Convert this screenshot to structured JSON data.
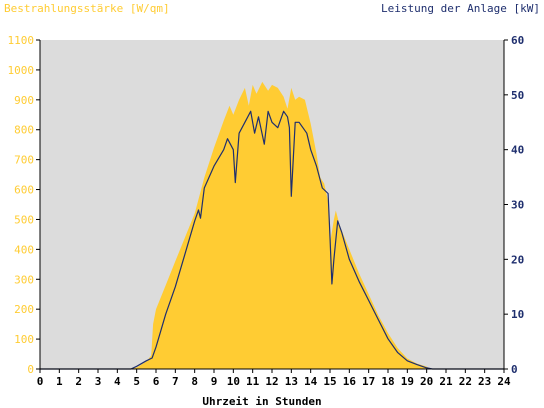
{
  "chart_data": {
    "type": "area",
    "left_axis_title": "Bestrahlungsstärke [W/qm]",
    "right_axis_title": "Leistung der Anlage [kW]",
    "xlabel": "Uhrzeit in Stunden",
    "x_ticks": [
      "0",
      "1",
      "2",
      "3",
      "4",
      "5",
      "6",
      "7",
      "8",
      "9",
      "10",
      "11",
      "12",
      "13",
      "14",
      "15",
      "16",
      "17",
      "18",
      "19",
      "20",
      "21",
      "22",
      "23",
      "24"
    ],
    "left_ticks": [
      "0",
      "100",
      "200",
      "300",
      "400",
      "500",
      "600",
      "700",
      "800",
      "900",
      "1000",
      "1100"
    ],
    "right_ticks": [
      "0",
      "10",
      "20",
      "30",
      "40",
      "50",
      "60"
    ],
    "xlim": [
      0,
      24
    ],
    "ylim_left": [
      0,
      1100
    ],
    "ylim_right": [
      0,
      60
    ],
    "grid": false,
    "colors": {
      "plot_background": "#dcdcdc",
      "irradiance_fill": "#ffcc33",
      "power_line": "#1f2f6e",
      "left_axis_text": "#ffcc33",
      "right_axis_text": "#1f2f6e",
      "axis_label_text": "#000000"
    },
    "series": [
      {
        "axis": "left",
        "style": "filled-area",
        "points": [
          [
            0,
            0
          ],
          [
            4.6,
            0
          ],
          [
            5.0,
            5
          ],
          [
            5.5,
            25
          ],
          [
            5.75,
            45
          ],
          [
            5.85,
            150
          ],
          [
            6.0,
            200
          ],
          [
            6.5,
            280
          ],
          [
            7.0,
            360
          ],
          [
            7.5,
            440
          ],
          [
            8.0,
            520
          ],
          [
            8.5,
            640
          ],
          [
            9.0,
            740
          ],
          [
            9.5,
            830
          ],
          [
            9.8,
            880
          ],
          [
            10.0,
            850
          ],
          [
            10.3,
            900
          ],
          [
            10.6,
            940
          ],
          [
            10.8,
            880
          ],
          [
            11.0,
            950
          ],
          [
            11.2,
            920
          ],
          [
            11.5,
            960
          ],
          [
            11.8,
            930
          ],
          [
            12.0,
            950
          ],
          [
            12.3,
            940
          ],
          [
            12.6,
            910
          ],
          [
            12.8,
            870
          ],
          [
            13.0,
            940
          ],
          [
            13.2,
            900
          ],
          [
            13.4,
            910
          ],
          [
            13.7,
            900
          ],
          [
            14.0,
            820
          ],
          [
            14.3,
            720
          ],
          [
            14.5,
            640
          ],
          [
            14.7,
            620
          ],
          [
            14.9,
            560
          ],
          [
            15.0,
            420
          ],
          [
            15.2,
            500
          ],
          [
            15.3,
            530
          ],
          [
            15.5,
            480
          ],
          [
            16.0,
            400
          ],
          [
            16.5,
            320
          ],
          [
            17.0,
            250
          ],
          [
            17.5,
            180
          ],
          [
            18.0,
            120
          ],
          [
            18.5,
            70
          ],
          [
            19.0,
            35
          ],
          [
            19.5,
            18
          ],
          [
            20.0,
            8
          ],
          [
            20.2,
            0
          ],
          [
            24,
            0
          ]
        ]
      },
      {
        "axis": "right",
        "style": "line",
        "points": [
          [
            0,
            0
          ],
          [
            4.7,
            0
          ],
          [
            5.0,
            0.5
          ],
          [
            5.5,
            1.5
          ],
          [
            5.8,
            2.0
          ],
          [
            6.0,
            4
          ],
          [
            6.5,
            10
          ],
          [
            7.0,
            15
          ],
          [
            7.5,
            21
          ],
          [
            8.0,
            27
          ],
          [
            8.2,
            29
          ],
          [
            8.3,
            27.5
          ],
          [
            8.5,
            33
          ],
          [
            9.0,
            37
          ],
          [
            9.5,
            40
          ],
          [
            9.7,
            42
          ],
          [
            10.0,
            40
          ],
          [
            10.1,
            34
          ],
          [
            10.3,
            43
          ],
          [
            10.6,
            45
          ],
          [
            10.9,
            47
          ],
          [
            11.1,
            43
          ],
          [
            11.3,
            46
          ],
          [
            11.6,
            41
          ],
          [
            11.8,
            47
          ],
          [
            12.0,
            45
          ],
          [
            12.3,
            44
          ],
          [
            12.6,
            47
          ],
          [
            12.8,
            46
          ],
          [
            12.9,
            44
          ],
          [
            13.0,
            31.5
          ],
          [
            13.2,
            45
          ],
          [
            13.4,
            45
          ],
          [
            13.6,
            44
          ],
          [
            13.8,
            43
          ],
          [
            14.0,
            40
          ],
          [
            14.3,
            37
          ],
          [
            14.6,
            33
          ],
          [
            14.9,
            32
          ],
          [
            15.0,
            24
          ],
          [
            15.1,
            15.5
          ],
          [
            15.2,
            20
          ],
          [
            15.4,
            27
          ],
          [
            15.6,
            25
          ],
          [
            16.0,
            20
          ],
          [
            16.5,
            16
          ],
          [
            17.0,
            12.5
          ],
          [
            17.5,
            9
          ],
          [
            18.0,
            5.5
          ],
          [
            18.5,
            3
          ],
          [
            19.0,
            1.5
          ],
          [
            19.5,
            0.8
          ],
          [
            20.0,
            0.2
          ],
          [
            20.3,
            0
          ],
          [
            24,
            0
          ]
        ]
      }
    ]
  }
}
